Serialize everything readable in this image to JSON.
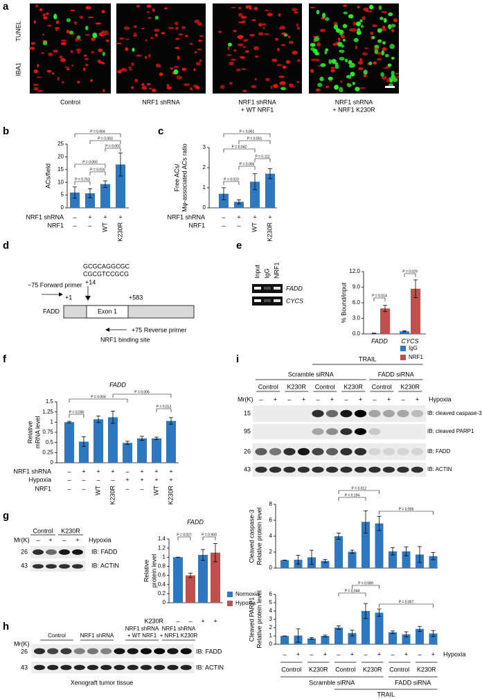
{
  "panel_labels": [
    "a",
    "b",
    "c",
    "d",
    "e",
    "f",
    "g",
    "h",
    "i"
  ],
  "a": {
    "channels": [
      "TUNEL",
      "IBA1"
    ],
    "conditions": [
      [
        "Control"
      ],
      [
        "NRF1 shRNA"
      ],
      [
        "NRF1 shRNA",
        "+ WT NRF1"
      ],
      [
        "NRF1 shRNA",
        "+ NRF1 K230R"
      ]
    ]
  },
  "d": {
    "sequence": [
      "GCGCAGGCGC",
      "CGCGTCCGCG"
    ],
    "site_position": "+14",
    "forward_primer": "−75 Forward primer",
    "tss": "+1",
    "gene": "FADD",
    "exon": "Exon 1",
    "end": "+583",
    "reverse_primer": "+75 Reverse primer",
    "binding_site": "NRF1 binding site"
  },
  "e_gel": {
    "lanes": [
      "Input",
      "IgG",
      "NRF1"
    ],
    "targets": [
      "FADD",
      "CYCS"
    ]
  },
  "g_blot": {
    "groups": [
      "Control",
      "K230R"
    ],
    "mr": "Mr(K)",
    "hypoxia": [
      "–",
      "+",
      "–",
      "+"
    ],
    "hypoxia_label": "Hypoxia",
    "markers": [
      "26",
      "43"
    ],
    "ib": [
      "IB: FADD",
      "IB: ACTIN"
    ]
  },
  "h": {
    "mr": "Mr(K)",
    "groups": [
      [
        "Control"
      ],
      [
        "NRF1 shRNA"
      ],
      [
        "NRF1 shRNA",
        "+ WT NRF1"
      ],
      [
        "NRF1 shRNA",
        "+ NRF1 K230R"
      ]
    ],
    "markers": [
      "26",
      "43"
    ],
    "ib": [
      "IB: FADD",
      "IB: ACTIN"
    ],
    "caption": "Xenograft tumor tissue"
  },
  "i_blot": {
    "trail": "TRAIL",
    "sirna": [
      "Scramble siRNA",
      "FADD siRNA"
    ],
    "groups": [
      "Control",
      "K230R",
      "Control",
      "K230R",
      "Control",
      "K230R"
    ],
    "mr": "Mr(K)",
    "hypoxia": [
      "–",
      "+",
      "–",
      "+",
      "–",
      "+",
      "–",
      "+",
      "–",
      "+",
      "–",
      "+"
    ],
    "hypoxia_label": "Hypoxia",
    "markers": [
      "15",
      "95",
      "26",
      "43"
    ],
    "ib": [
      "IB: cleaved caspase-3",
      "IB: cleaved  PARP1",
      "IB: FADD",
      "IB: ACTIN"
    ]
  },
  "i_table": {
    "hypoxia": [
      "–",
      "+",
      "–",
      "+",
      "–",
      "+",
      "–",
      "+",
      "–",
      "+",
      "–",
      "+"
    ],
    "hypoxia_label": "Hypoxia",
    "groups": [
      "Control",
      "K230R",
      "Control",
      "K230R",
      "Control",
      "K230R"
    ],
    "sirna": [
      "Scramble siRNA",
      "FADD siRNA"
    ],
    "trail": "TRAIL"
  },
  "chart_data": [
    {
      "type": "bar",
      "y_label": [
        "ACs/field"
      ],
      "values": [
        6,
        5.7,
        9.3,
        17
      ],
      "errors": [
        2.2,
        1.8,
        1.3,
        4.5
      ],
      "color": "#2e78c0",
      "ylim": [
        0,
        25
      ],
      "yticks": [
        0,
        5,
        10,
        15,
        20,
        25
      ],
      "annotations": [
        "P = 0.004",
        "P = 0.003",
        "P = 0.003",
        "P = 0.060",
        "P = 0.016",
        "P = 0.763"
      ],
      "conditions": [
        {
          "label": "NRF1 shRNA",
          "values": [
            "–",
            "+",
            "+",
            "+"
          ]
        },
        {
          "label": "NRF1",
          "values": [
            "–",
            "–",
            "WT",
            "K230R"
          ]
        }
      ]
    },
    {
      "type": "bar",
      "y_label": [
        "Free ACs/",
        "Mφ-associated ACs ratio"
      ],
      "values": [
        0.7,
        0.3,
        1.3,
        1.7
      ],
      "errors": [
        0.3,
        0.1,
        0.4,
        0.25
      ],
      "color": "#2e78c0",
      "ylim": [
        0,
        3
      ],
      "yticks": [
        0,
        1,
        2,
        3
      ],
      "annotations": [
        "P < 0.001",
        "P = 0.001",
        "P = 0.042",
        "P = 0.112",
        "P = 0.006",
        "P = 0.023"
      ],
      "conditions": [
        {
          "label": "NRF1 shRNA",
          "values": [
            "–",
            "+",
            "+",
            "+"
          ]
        },
        {
          "label": "NRF1",
          "values": [
            "–",
            "–",
            "WT",
            "K230R"
          ]
        }
      ]
    },
    {
      "type": "bar",
      "y_label": [
        "% Bound/input"
      ],
      "categories": [
        "FADD",
        "CYCS"
      ],
      "series": [
        {
          "name": "IgG",
          "color": "#2e78c0",
          "values": [
            0.1,
            0.5
          ],
          "errors": [
            0.05,
            0.1
          ]
        },
        {
          "name": "NRF1",
          "color": "#c0504d",
          "values": [
            4.9,
            8.7
          ],
          "errors": [
            0.6,
            1.7
          ]
        }
      ],
      "ylim": [
        0,
        12
      ],
      "yticks": [
        {
          "value": 0,
          "label": "0.0"
        },
        {
          "value": 3,
          "label": "3.0"
        },
        {
          "value": 6,
          "label": "6.0"
        },
        {
          "value": 9,
          "label": "9.0"
        },
        {
          "value": 12,
          "label": "12.0"
        }
      ],
      "annotations": [
        "P = 0.014",
        "P = 0.029"
      ],
      "legend": "lower right"
    },
    {
      "type": "bar",
      "title": "FADD",
      "y_label": [
        "Relative",
        "mRNA level"
      ],
      "values": [
        1.0,
        0.52,
        1.07,
        1.12,
        0.49,
        0.6,
        0.6,
        1.03
      ],
      "errors": [
        0.02,
        0.12,
        0.08,
        0.15,
        0.04,
        0.05,
        0.03,
        0.08
      ],
      "color": "#2e78c0",
      "ylim": [
        0,
        1.5
      ],
      "yticks": [
        0,
        0.25,
        0.5,
        0.75,
        1,
        1.25,
        1.5
      ],
      "annotations": [
        "P = 0.036",
        "P = 0.004",
        "P = 0.006",
        "P = 0.013"
      ],
      "conditions": [
        {
          "label": "NRF1 shRNA",
          "values": [
            "–",
            "+",
            "+",
            "+",
            "–",
            "+",
            "+",
            "+"
          ]
        },
        {
          "label": "Hypoxia",
          "values": [
            "–",
            "–",
            "–",
            "–",
            "+",
            "+",
            "+",
            "+"
          ]
        },
        {
          "label": "NRF1",
          "values": [
            "–",
            "–",
            "WT",
            "K230R",
            "–",
            "–",
            "WT",
            "K230R"
          ]
        }
      ]
    },
    {
      "type": "bar",
      "title": "FADD",
      "y_label": [
        "Relative",
        "protein level"
      ],
      "series": [
        {
          "name": "Normoxia",
          "color": "#2e78c0",
          "values": [
            1.0,
            null,
            1.05,
            null
          ],
          "errors": [
            0,
            null,
            0.12,
            null
          ]
        },
        {
          "name": "Hypoxia",
          "color": "#c0504d",
          "values": [
            null,
            0.6,
            null,
            1.1
          ],
          "errors": [
            null,
            0.05,
            null,
            0.2
          ]
        }
      ],
      "ylim": [
        0,
        1.4
      ],
      "yticks": [
        0,
        0.2,
        0.4,
        0.6,
        0.8,
        1,
        1.2,
        1.4
      ],
      "annotations": [
        "P = 0.027",
        "P = 0.900"
      ],
      "legend": "lower right",
      "conditions": [
        {
          "label": "K230R",
          "values": [
            "–",
            "–",
            "+",
            "+"
          ]
        }
      ]
    },
    {
      "type": "bar",
      "y_label": [
        "Cleaved caspase-3",
        "Relative protein level"
      ],
      "values": [
        1.0,
        1.05,
        1.35,
        0.9,
        4.0,
        2.05,
        5.8,
        5.6,
        2.1,
        2.1,
        1.7,
        1.5
      ],
      "errors": [
        0,
        0.55,
        0.9,
        0.2,
        0.4,
        0.2,
        1.4,
        0.9,
        0.45,
        0.55,
        1.0,
        0.45
      ],
      "color": "#2e78c0",
      "ylim": [
        0,
        8
      ],
      "yticks": [
        0,
        2,
        4,
        6,
        8
      ],
      "annotations": [
        "P = 0.012",
        "P = 0.194",
        "P = 0.006"
      ]
    },
    {
      "type": "bar",
      "y_label": [
        "Cleaved  PARP1",
        "Relative protein level"
      ],
      "values": [
        1.0,
        1.05,
        0.7,
        1.0,
        2.0,
        1.35,
        4.0,
        3.8,
        1.45,
        1.2,
        1.85,
        1.3
      ],
      "errors": [
        0,
        0.8,
        0.1,
        0.1,
        0.2,
        0.35,
        0.9,
        0.45,
        0.15,
        0.3,
        0.3,
        0.35
      ],
      "color": "#2e78c0",
      "ylim": [
        0,
        6
      ],
      "yticks": [
        0,
        1,
        2,
        3,
        4,
        5,
        6
      ],
      "annotations": [
        "P = 0.089",
        "P = 0.044",
        "P = 0.007"
      ]
    }
  ]
}
